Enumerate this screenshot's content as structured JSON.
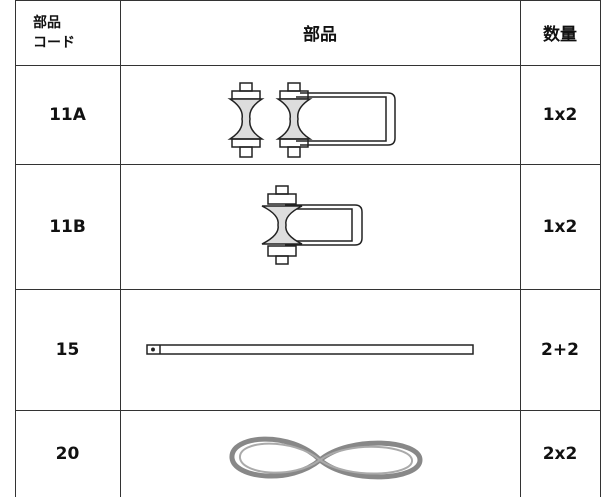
{
  "table": {
    "header": {
      "code": [
        "部品",
        "コード"
      ],
      "part": "部品",
      "qty": "数量"
    },
    "rows": [
      [
        "11A",
        "1x2"
      ],
      [
        "11B",
        "1x2"
      ],
      [
        "15",
        "2+2"
      ],
      [
        "20",
        "2x2"
      ]
    ]
  }
}
